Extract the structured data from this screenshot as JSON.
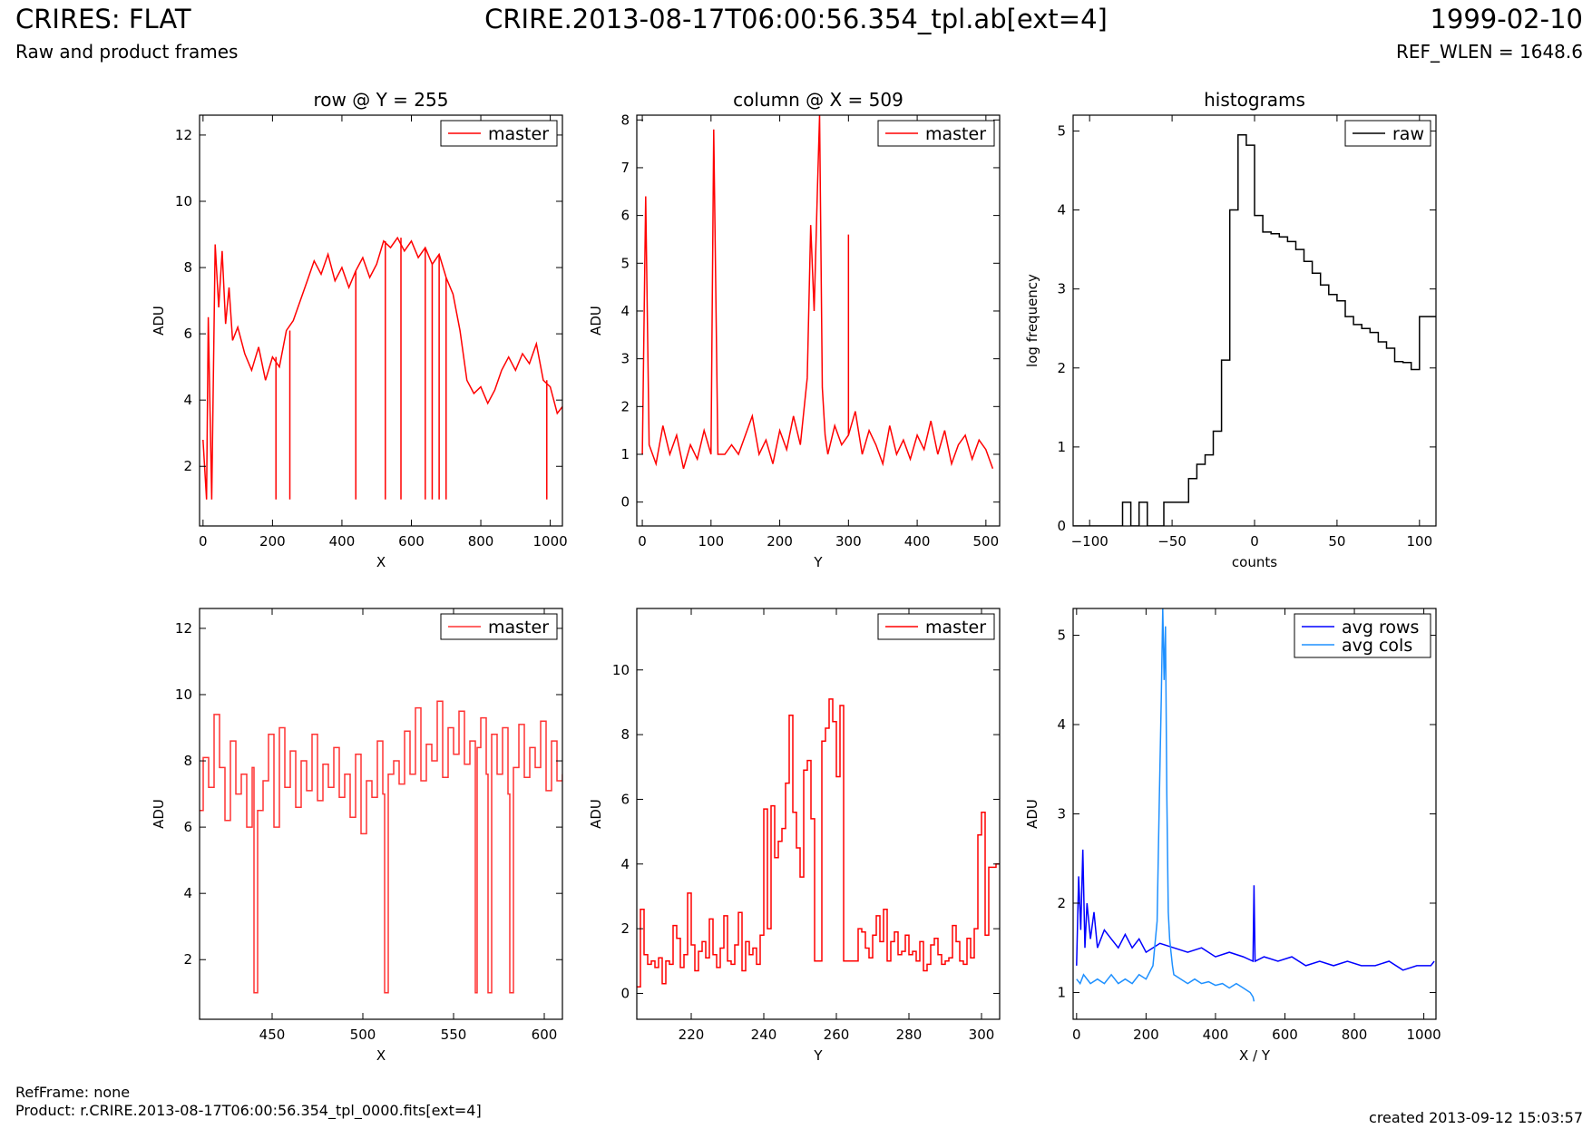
{
  "header": {
    "title_left": "CRIRES: FLAT",
    "subtitle_left": "Raw and product frames",
    "title_center": "CRIRE.2013-08-17T06:00:56.354_tpl.ab[ext=4]",
    "title_right": "1999-02-10",
    "subtitle_right": "REF_WLEN = 1648.6"
  },
  "footer": {
    "refframe": "RefFrame: none",
    "product": "Product: r.CRIRE.2013-08-17T06:00:56.354_tpl_0000.fits[ext=4]",
    "created": "created 2013-09-12 15:03:57"
  },
  "chart_data": [
    {
      "id": "row-raw",
      "type": "line",
      "title": "row @ Y = 255",
      "xlabel": "X",
      "ylabel": "ADU",
      "xlim": [
        -10,
        1035
      ],
      "ylim": [
        0.2,
        12.6
      ],
      "xticks": [
        0,
        200,
        400,
        600,
        800,
        1000
      ],
      "yticks": [
        2,
        4,
        6,
        8,
        10,
        12
      ],
      "legend": {
        "position": "top-right",
        "entries": [
          "master"
        ]
      },
      "series": [
        {
          "name": "master",
          "color": "#ff0000",
          "x": [
            0,
            10,
            15,
            25,
            35,
            45,
            55,
            65,
            75,
            85,
            100,
            120,
            140,
            160,
            180,
            200,
            220,
            240,
            260,
            280,
            300,
            320,
            340,
            360,
            380,
            400,
            420,
            440,
            460,
            480,
            500,
            520,
            540,
            560,
            580,
            600,
            620,
            640,
            660,
            680,
            700,
            720,
            740,
            760,
            780,
            800,
            820,
            840,
            860,
            880,
            900,
            920,
            940,
            960,
            980,
            1000,
            1020,
            1035
          ],
          "y": [
            2.8,
            1.0,
            6.5,
            1.0,
            8.7,
            6.8,
            8.5,
            6.3,
            7.4,
            5.8,
            6.2,
            5.4,
            4.9,
            5.6,
            4.6,
            5.3,
            5.0,
            6.1,
            6.4,
            7.0,
            7.6,
            8.2,
            7.8,
            8.4,
            7.6,
            8.0,
            7.4,
            7.9,
            8.3,
            7.7,
            8.1,
            8.8,
            8.6,
            8.9,
            8.5,
            8.8,
            8.3,
            8.6,
            8.1,
            8.4,
            7.7,
            7.2,
            6.1,
            4.6,
            4.2,
            4.4,
            3.9,
            4.3,
            4.9,
            5.3,
            4.9,
            5.4,
            5.1,
            5.7,
            4.6,
            4.4,
            3.6,
            3.8
          ]
        }
      ],
      "spikes": [
        {
          "x": 210,
          "y": 1.0
        },
        {
          "x": 250,
          "y": 1.0
        },
        {
          "x": 440,
          "y": 1.0
        },
        {
          "x": 525,
          "y": 1.0
        },
        {
          "x": 570,
          "y": 1.0
        },
        {
          "x": 640,
          "y": 1.0
        },
        {
          "x": 660,
          "y": 1.0
        },
        {
          "x": 680,
          "y": 1.0
        },
        {
          "x": 700,
          "y": 1.0
        },
        {
          "x": 990,
          "y": 1.0
        }
      ]
    },
    {
      "id": "column-raw",
      "type": "line",
      "title": "column @ X = 509",
      "xlabel": "Y",
      "ylabel": "ADU",
      "xlim": [
        -8,
        520
      ],
      "ylim": [
        -0.5,
        8.1
      ],
      "xticks": [
        0,
        100,
        200,
        300,
        400,
        500
      ],
      "yticks": [
        0,
        1,
        2,
        3,
        4,
        5,
        6,
        7,
        8
      ],
      "legend": {
        "position": "top-right",
        "entries": [
          "master"
        ]
      },
      "series": [
        {
          "name": "master",
          "color": "#ff0000",
          "x": [
            0,
            5,
            10,
            20,
            30,
            40,
            50,
            60,
            70,
            80,
            90,
            100,
            104,
            110,
            120,
            130,
            140,
            150,
            160,
            170,
            180,
            190,
            200,
            210,
            220,
            230,
            240,
            245,
            250,
            255,
            258,
            262,
            266,
            270,
            280,
            290,
            300,
            310,
            320,
            330,
            340,
            350,
            360,
            370,
            380,
            390,
            400,
            410,
            420,
            430,
            440,
            450,
            460,
            470,
            480,
            490,
            500,
            510
          ],
          "y": [
            1.0,
            6.4,
            1.2,
            0.8,
            1.6,
            1.0,
            1.4,
            0.7,
            1.2,
            0.9,
            1.5,
            1.0,
            7.8,
            1.0,
            1.0,
            1.2,
            1.0,
            1.4,
            1.8,
            1.0,
            1.3,
            0.8,
            1.5,
            1.1,
            1.8,
            1.2,
            2.6,
            5.8,
            4.0,
            6.6,
            8.1,
            2.4,
            1.4,
            1.0,
            1.6,
            1.2,
            1.4,
            1.9,
            1.0,
            1.5,
            1.2,
            0.8,
            1.6,
            1.0,
            1.3,
            0.9,
            1.4,
            1.1,
            1.7,
            1.0,
            1.5,
            0.8,
            1.2,
            1.4,
            0.9,
            1.3,
            1.1,
            0.7
          ]
        }
      ],
      "spikes": [
        {
          "x": 300,
          "y": 5.6
        }
      ]
    },
    {
      "id": "histograms",
      "type": "line",
      "title": "histograms",
      "xlabel": "counts",
      "ylabel": "log frequency",
      "xlim": [
        -110,
        110
      ],
      "ylim": [
        0,
        5.2
      ],
      "xticks": [
        -100,
        -50,
        0,
        50,
        100
      ],
      "yticks": [
        0,
        1,
        2,
        3,
        4,
        5
      ],
      "legend": {
        "position": "top-right",
        "entries": [
          "raw"
        ]
      },
      "series": [
        {
          "name": "raw",
          "color": "#000000",
          "step": true,
          "x": [
            -110,
            -105,
            -100,
            -95,
            -90,
            -85,
            -80,
            -75,
            -70,
            -65,
            -60,
            -55,
            -50,
            -45,
            -40,
            -35,
            -30,
            -25,
            -20,
            -15,
            -10,
            -5,
            0,
            5,
            10,
            15,
            20,
            25,
            30,
            35,
            40,
            45,
            50,
            55,
            60,
            65,
            70,
            75,
            80,
            85,
            90,
            95,
            100,
            105,
            110
          ],
          "y": [
            0,
            0,
            0,
            0,
            0,
            0,
            0.3,
            0,
            0.3,
            0,
            0,
            0.3,
            0.3,
            0.3,
            0.6,
            0.78,
            0.9,
            1.2,
            2.1,
            4.0,
            4.95,
            4.82,
            3.93,
            3.72,
            3.7,
            3.66,
            3.6,
            3.5,
            3.35,
            3.2,
            3.05,
            2.93,
            2.85,
            2.65,
            2.55,
            2.5,
            2.45,
            2.33,
            2.25,
            2.08,
            2.07,
            1.98,
            2.65,
            2.65,
            2.65
          ]
        }
      ]
    },
    {
      "id": "row-zoom",
      "type": "line",
      "title": "",
      "xlabel": "X",
      "ylabel": "ADU",
      "xlim": [
        410,
        610
      ],
      "ylim": [
        0.2,
        12.6
      ],
      "xticks": [
        450,
        500,
        550,
        600
      ],
      "yticks": [
        2,
        4,
        6,
        8,
        10,
        12
      ],
      "legend": {
        "position": "top-right",
        "entries": [
          "master"
        ]
      },
      "series": [
        {
          "name": "master",
          "color": "#ff3333",
          "step": true,
          "x": [
            410,
            412,
            415,
            418,
            421,
            424,
            427,
            430,
            433,
            436,
            439,
            440,
            442,
            445,
            448,
            451,
            454,
            457,
            460,
            463,
            466,
            469,
            472,
            475,
            478,
            481,
            484,
            487,
            490,
            493,
            496,
            499,
            502,
            505,
            508,
            511,
            512,
            514,
            517,
            520,
            523,
            526,
            529,
            532,
            535,
            538,
            541,
            544,
            547,
            550,
            553,
            556,
            559,
            562,
            563,
            565,
            568,
            569,
            571,
            574,
            577,
            580,
            581,
            583,
            586,
            589,
            592,
            595,
            598,
            601,
            604,
            607,
            610
          ],
          "y": [
            6.5,
            8.1,
            7.2,
            9.4,
            7.8,
            6.2,
            8.6,
            7.0,
            7.6,
            6.0,
            7.8,
            1.0,
            6.5,
            7.4,
            8.8,
            6.0,
            9.0,
            7.2,
            8.3,
            6.6,
            8.0,
            7.1,
            8.8,
            6.8,
            7.9,
            7.2,
            8.4,
            6.9,
            7.6,
            6.3,
            8.2,
            5.8,
            7.4,
            6.9,
            8.6,
            7.0,
            1.0,
            7.6,
            8.0,
            7.3,
            8.9,
            7.6,
            9.6,
            7.4,
            8.5,
            8.0,
            9.8,
            7.5,
            9.0,
            8.2,
            9.5,
            7.9,
            8.6,
            1.0,
            8.4,
            9.3,
            7.6,
            1.0,
            8.8,
            7.6,
            9.0,
            7.0,
            1.0,
            7.8,
            9.1,
            7.5,
            8.4,
            7.8,
            9.2,
            7.1,
            8.6,
            7.4,
            7.6
          ]
        }
      ]
    },
    {
      "id": "column-zoom",
      "type": "line",
      "title": "",
      "xlabel": "Y",
      "ylabel": "ADU",
      "xlim": [
        205,
        305
      ],
      "ylim": [
        -0.8,
        11.9
      ],
      "xticks": [
        220,
        240,
        260,
        280,
        300
      ],
      "yticks": [
        0,
        2,
        4,
        6,
        8,
        10
      ],
      "legend": {
        "position": "top-right",
        "entries": [
          "master"
        ]
      },
      "series": [
        {
          "name": "master",
          "color": "#ff0000",
          "step": true,
          "x": [
            205,
            206,
            207,
            208,
            209,
            210,
            211,
            212,
            213,
            214,
            215,
            216,
            217,
            218,
            219,
            220,
            221,
            222,
            223,
            224,
            225,
            226,
            227,
            228,
            229,
            230,
            231,
            232,
            233,
            234,
            235,
            236,
            237,
            238,
            239,
            240,
            241,
            242,
            243,
            244,
            245,
            246,
            247,
            248,
            249,
            250,
            251,
            252,
            253,
            254,
            255,
            256,
            257,
            258,
            259,
            260,
            261,
            262,
            263,
            264,
            265,
            266,
            267,
            268,
            269,
            270,
            271,
            272,
            273,
            274,
            275,
            276,
            277,
            278,
            279,
            280,
            281,
            282,
            283,
            284,
            285,
            286,
            287,
            288,
            289,
            290,
            291,
            292,
            293,
            294,
            295,
            296,
            297,
            298,
            299,
            300,
            301,
            302,
            303,
            304,
            305
          ],
          "y": [
            0.2,
            2.6,
            1.2,
            0.9,
            1.0,
            0.8,
            1.1,
            0.3,
            1.0,
            0.9,
            2.1,
            1.7,
            0.8,
            1.2,
            3.1,
            1.5,
            0.7,
            1.3,
            1.6,
            1.1,
            2.3,
            1.2,
            0.8,
            1.4,
            2.4,
            1.0,
            0.9,
            1.5,
            2.5,
            0.7,
            1.6,
            1.2,
            1.4,
            0.9,
            1.8,
            5.7,
            2.0,
            5.8,
            4.2,
            4.7,
            5.1,
            6.5,
            8.6,
            5.6,
            4.5,
            3.6,
            6.9,
            7.2,
            5.4,
            1.0,
            1.0,
            7.8,
            8.2,
            9.1,
            8.4,
            6.7,
            8.9,
            1.0,
            1.0,
            1.0,
            1.0,
            2.0,
            1.9,
            1.4,
            1.1,
            1.8,
            2.4,
            1.6,
            2.6,
            1.0,
            1.6,
            1.9,
            1.2,
            1.3,
            1.8,
            1.2,
            1.3,
            1.0,
            1.6,
            0.7,
            0.9,
            1.5,
            1.7,
            1.2,
            0.9,
            1.0,
            1.1,
            2.1,
            1.6,
            1.0,
            0.9,
            1.7,
            1.1,
            2.0,
            4.9,
            5.6,
            1.8,
            3.9,
            3.9,
            4.0,
            4.0
          ]
        }
      ]
    },
    {
      "id": "averages",
      "type": "line",
      "title": "",
      "xlabel": "X / Y",
      "ylabel": "ADU",
      "xlim": [
        -10,
        1035
      ],
      "ylim": [
        0.7,
        5.3
      ],
      "xticks": [
        0,
        200,
        400,
        600,
        800,
        1000
      ],
      "yticks": [
        1,
        2,
        3,
        4,
        5
      ],
      "legend": {
        "position": "top-right",
        "entries": [
          "avg rows",
          "avg cols"
        ]
      },
      "series": [
        {
          "name": "avg rows",
          "color": "#0000ff",
          "x": [
            0,
            6,
            12,
            18,
            24,
            30,
            40,
            50,
            60,
            80,
            100,
            120,
            140,
            160,
            180,
            200,
            240,
            280,
            320,
            360,
            400,
            440,
            480,
            508,
            511,
            514,
            540,
            580,
            620,
            660,
            700,
            740,
            780,
            820,
            860,
            900,
            940,
            980,
            1020,
            1030
          ],
          "y": [
            1.3,
            2.3,
            1.7,
            2.6,
            1.5,
            2.0,
            1.6,
            1.9,
            1.5,
            1.7,
            1.6,
            1.5,
            1.65,
            1.5,
            1.6,
            1.45,
            1.55,
            1.5,
            1.45,
            1.5,
            1.4,
            1.45,
            1.4,
            1.35,
            2.2,
            1.35,
            1.4,
            1.35,
            1.4,
            1.3,
            1.35,
            1.3,
            1.35,
            1.3,
            1.3,
            1.35,
            1.25,
            1.3,
            1.3,
            1.35
          ]
        },
        {
          "name": "avg cols",
          "color": "#1e90ff",
          "x": [
            0,
            10,
            20,
            40,
            60,
            80,
            100,
            120,
            140,
            160,
            180,
            200,
            220,
            232,
            238,
            244,
            248,
            252,
            256,
            260,
            264,
            268,
            272,
            276,
            280,
            300,
            320,
            340,
            360,
            380,
            400,
            420,
            440,
            460,
            480,
            500,
            508,
            511
          ],
          "y": [
            1.15,
            1.1,
            1.2,
            1.1,
            1.15,
            1.1,
            1.2,
            1.1,
            1.15,
            1.1,
            1.2,
            1.15,
            1.3,
            1.8,
            3.1,
            4.3,
            5.3,
            4.5,
            5.1,
            3.2,
            1.9,
            1.6,
            1.45,
            1.3,
            1.2,
            1.15,
            1.1,
            1.15,
            1.1,
            1.12,
            1.08,
            1.1,
            1.05,
            1.1,
            1.05,
            1.0,
            0.95,
            0.9
          ]
        }
      ]
    }
  ]
}
